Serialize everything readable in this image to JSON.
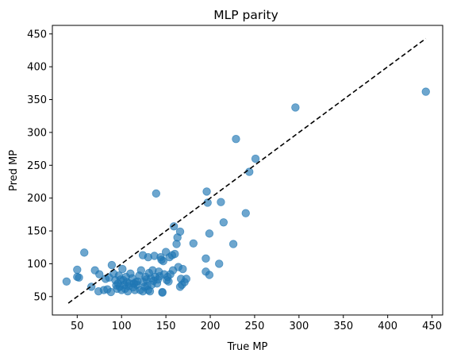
{
  "chart_data": {
    "type": "scatter",
    "title": "MLP parity",
    "xlabel": "True MP",
    "ylabel": "Pred MP",
    "xlim": [
      22,
      462
    ],
    "ylim": [
      22,
      463
    ],
    "xticks": [
      50,
      100,
      150,
      200,
      250,
      300,
      350,
      400,
      450
    ],
    "yticks": [
      50,
      100,
      150,
      200,
      250,
      300,
      350,
      400,
      450
    ],
    "grid": false,
    "legend": "none",
    "point_color": "#1f77b4",
    "point_alpha": 0.65,
    "parity_line": {
      "x": [
        40,
        443
      ],
      "y": [
        40,
        443
      ],
      "style": "dashed",
      "color": "#000000"
    },
    "points": [
      [
        38,
        73
      ],
      [
        50,
        91
      ],
      [
        50,
        80
      ],
      [
        52,
        79
      ],
      [
        58,
        117
      ],
      [
        66,
        65
      ],
      [
        70,
        90
      ],
      [
        74,
        58
      ],
      [
        75,
        84
      ],
      [
        80,
        60
      ],
      [
        84,
        61
      ],
      [
        82,
        77
      ],
      [
        86,
        79
      ],
      [
        88,
        57
      ],
      [
        89,
        98
      ],
      [
        91,
        85
      ],
      [
        93,
        75
      ],
      [
        94,
        67
      ],
      [
        95,
        62
      ],
      [
        96,
        70
      ],
      [
        97,
        82
      ],
      [
        98,
        65
      ],
      [
        99,
        76
      ],
      [
        100,
        60
      ],
      [
        101,
        92
      ],
      [
        102,
        75
      ],
      [
        103,
        68
      ],
      [
        104,
        62
      ],
      [
        105,
        80
      ],
      [
        106,
        72
      ],
      [
        107,
        58
      ],
      [
        108,
        66
      ],
      [
        109,
        70
      ],
      [
        110,
        85
      ],
      [
        112,
        78
      ],
      [
        113,
        64
      ],
      [
        114,
        70
      ],
      [
        115,
        60
      ],
      [
        116,
        72
      ],
      [
        117,
        68
      ],
      [
        118,
        73
      ],
      [
        120,
        82
      ],
      [
        121,
        60
      ],
      [
        122,
        90
      ],
      [
        124,
        58
      ],
      [
        124,
        113
      ],
      [
        125,
        72
      ],
      [
        126,
        65
      ],
      [
        127,
        80
      ],
      [
        128,
        76
      ],
      [
        129,
        66
      ],
      [
        130,
        60
      ],
      [
        130,
        110
      ],
      [
        131,
        86
      ],
      [
        132,
        58
      ],
      [
        133,
        78
      ],
      [
        134,
        68
      ],
      [
        135,
        90
      ],
      [
        136,
        74
      ],
      [
        137,
        112
      ],
      [
        138,
        80
      ],
      [
        139,
        207
      ],
      [
        140,
        70
      ],
      [
        141,
        76
      ],
      [
        142,
        88
      ],
      [
        143,
        81
      ],
      [
        144,
        110
      ],
      [
        145,
        106
      ],
      [
        146,
        57
      ],
      [
        146,
        56
      ],
      [
        147,
        104
      ],
      [
        148,
        84
      ],
      [
        150,
        118
      ],
      [
        151,
        75
      ],
      [
        152,
        80
      ],
      [
        153,
        73
      ],
      [
        154,
        110
      ],
      [
        155,
        84
      ],
      [
        157,
        113
      ],
      [
        158,
        90
      ],
      [
        159,
        157
      ],
      [
        160,
        115
      ],
      [
        162,
        130
      ],
      [
        163,
        140
      ],
      [
        164,
        95
      ],
      [
        166,
        149
      ],
      [
        166,
        65
      ],
      [
        167,
        77
      ],
      [
        168,
        68
      ],
      [
        169,
        92
      ],
      [
        171,
        72
      ],
      [
        173,
        77
      ],
      [
        181,
        131
      ],
      [
        195,
        108
      ],
      [
        195,
        88
      ],
      [
        196,
        210
      ],
      [
        197,
        193
      ],
      [
        199,
        146
      ],
      [
        199,
        83
      ],
      [
        210,
        100
      ],
      [
        212,
        194
      ],
      [
        215,
        163
      ],
      [
        226,
        130
      ],
      [
        229,
        290
      ],
      [
        240,
        177
      ],
      [
        244,
        240
      ],
      [
        251,
        260
      ],
      [
        296,
        338
      ],
      [
        443,
        362
      ]
    ]
  }
}
